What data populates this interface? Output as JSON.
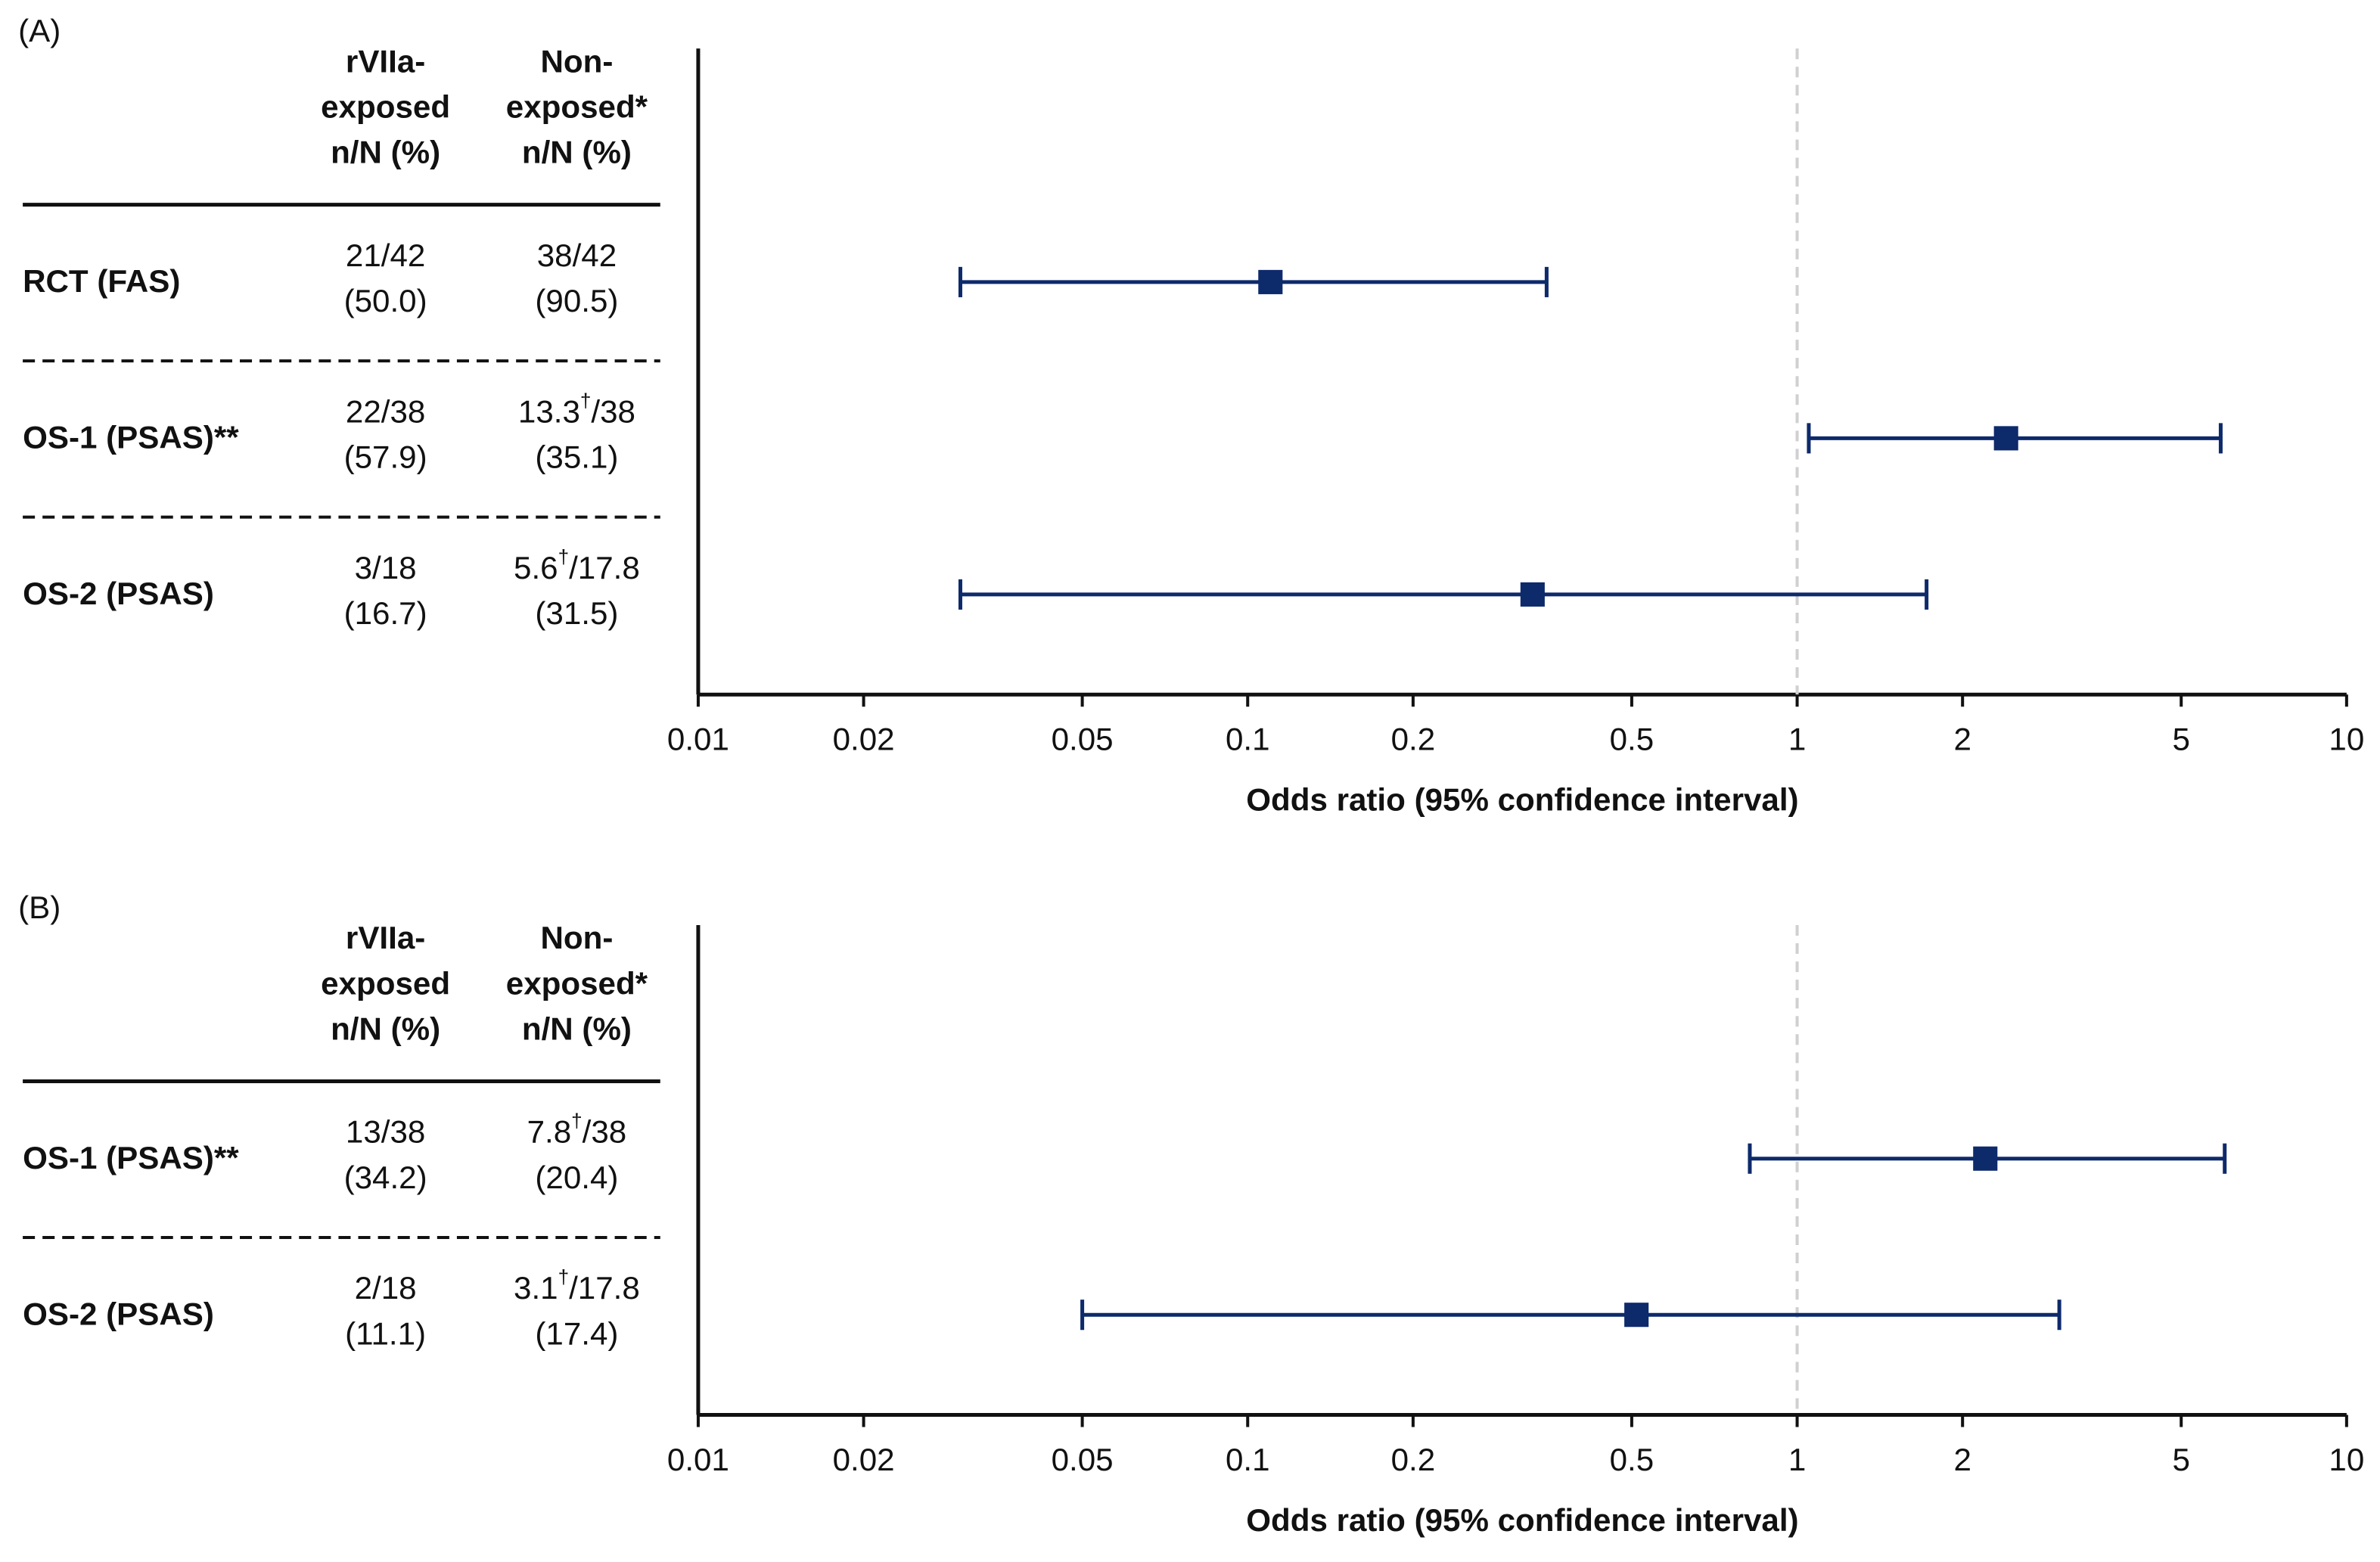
{
  "chart_data": [
    {
      "type": "forest",
      "panel_label": "(A)",
      "column_headers": [
        [
          "rVIIa-",
          "exposed",
          "n/N (%)"
        ],
        [
          "Non-",
          "exposed*",
          "n/N (%)"
        ]
      ],
      "rows": [
        {
          "label": "RCT (FAS)",
          "exposed": [
            "21/42",
            "(50.0)"
          ],
          "non_exposed": [
            "38/42",
            "(90.5)"
          ],
          "estimate": 0.11,
          "lower": 0.03,
          "upper": 0.35
        },
        {
          "label": "OS-1 (PSAS)**",
          "exposed": [
            "22/38",
            "(57.9)"
          ],
          "non_exposed": [
            "13.3†/38",
            "(35.1)"
          ],
          "estimate": 2.4,
          "lower": 1.05,
          "upper": 5.9
        },
        {
          "label": "OS-2 (PSAS)",
          "exposed": [
            "3/18",
            "(16.7)"
          ],
          "non_exposed": [
            "5.6†/17.8",
            "(31.5)"
          ],
          "estimate": 0.33,
          "lower": 0.03,
          "upper": 1.72
        }
      ],
      "xlabel": "Odds ratio (95% confidence interval)",
      "xscale": "log",
      "xlim": [
        0.01,
        10
      ],
      "xticks": [
        0.01,
        0.02,
        0.05,
        0.1,
        0.2,
        0.5,
        1,
        2,
        5,
        10
      ],
      "reference_line": 1,
      "color": "#0d2a6b"
    },
    {
      "type": "forest",
      "panel_label": "(B)",
      "column_headers": [
        [
          "rVIIa-",
          "exposed",
          "n/N (%)"
        ],
        [
          "Non-",
          "exposed*",
          "n/N (%)"
        ]
      ],
      "rows": [
        {
          "label": "OS-1 (PSAS)**",
          "exposed": [
            "13/38",
            "(34.2)"
          ],
          "non_exposed": [
            "7.8†/38",
            "(20.4)"
          ],
          "estimate": 2.2,
          "lower": 0.82,
          "upper": 6.0
        },
        {
          "label": "OS-2 (PSAS)",
          "exposed": [
            "2/18",
            "(11.1)"
          ],
          "non_exposed": [
            "3.1†/17.8",
            "(17.4)"
          ],
          "estimate": 0.51,
          "lower": 0.05,
          "upper": 3.0
        }
      ],
      "xlabel": "Odds ratio (95% confidence interval)",
      "xscale": "log",
      "xlim": [
        0.01,
        10
      ],
      "xticks": [
        0.01,
        0.02,
        0.05,
        0.1,
        0.2,
        0.5,
        1,
        2,
        5,
        10
      ],
      "reference_line": 1,
      "color": "#0d2a6b"
    }
  ]
}
